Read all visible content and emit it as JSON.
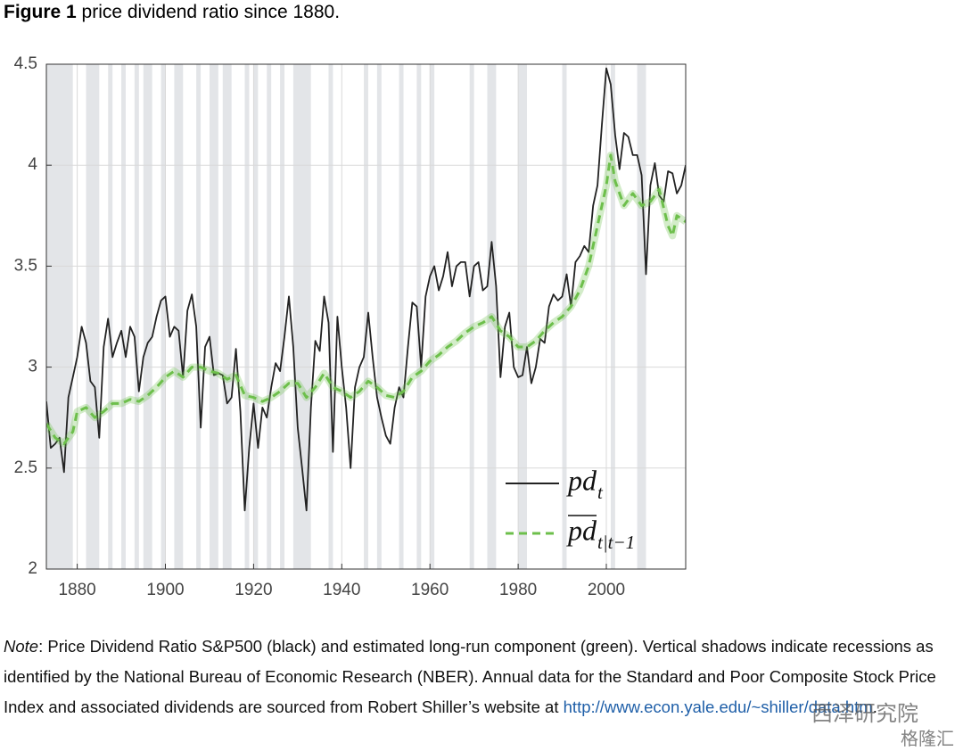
{
  "figure": {
    "label": "Figure 1",
    "caption": "price dividend ratio since 1880."
  },
  "chart_data": {
    "type": "line",
    "xlim": [
      1873,
      2018
    ],
    "xticks": [
      1880,
      1900,
      1920,
      1940,
      1960,
      1980,
      2000
    ],
    "ylim": [
      2,
      4.5
    ],
    "yticks": [
      2,
      2.5,
      3,
      3.5,
      4,
      4.5
    ],
    "grid": true,
    "legend": "lower right",
    "recessions": [
      [
        1873,
        1879
      ],
      [
        1882,
        1885
      ],
      [
        1887,
        1888
      ],
      [
        1890,
        1891
      ],
      [
        1893,
        1894
      ],
      [
        1895,
        1897
      ],
      [
        1899,
        1900
      ],
      [
        1902,
        1904
      ],
      [
        1907,
        1908
      ],
      [
        1910,
        1912
      ],
      [
        1913,
        1915
      ],
      [
        1918,
        1919
      ],
      [
        1920,
        1921
      ],
      [
        1923,
        1924
      ],
      [
        1926,
        1927
      ],
      [
        1929,
        1933
      ],
      [
        1937,
        1938
      ],
      [
        1945,
        1946
      ],
      [
        1948,
        1949
      ],
      [
        1953,
        1954
      ],
      [
        1957,
        1958
      ],
      [
        1960,
        1961
      ],
      [
        1969,
        1970
      ],
      [
        1973,
        1975
      ],
      [
        1980,
        1981
      ],
      [
        1981,
        1982
      ],
      [
        1990,
        1991
      ],
      [
        2001,
        2002
      ],
      [
        2007,
        2009
      ]
    ],
    "recession_color": "#e3e5e8",
    "series": [
      {
        "name": "pd",
        "name_subscript": "t",
        "color": "#222222",
        "dash": false,
        "x": [
          1873,
          1874,
          1875,
          1876,
          1877,
          1878,
          1879,
          1880,
          1881,
          1882,
          1883,
          1884,
          1885,
          1886,
          1887,
          1888,
          1889,
          1890,
          1891,
          1892,
          1893,
          1894,
          1895,
          1896,
          1897,
          1898,
          1899,
          1900,
          1901,
          1902,
          1903,
          1904,
          1905,
          1906,
          1907,
          1908,
          1909,
          1910,
          1911,
          1912,
          1913,
          1914,
          1915,
          1916,
          1917,
          1918,
          1919,
          1920,
          1921,
          1922,
          1923,
          1924,
          1925,
          1926,
          1927,
          1928,
          1929,
          1930,
          1931,
          1932,
          1933,
          1934,
          1935,
          1936,
          1937,
          1938,
          1939,
          1940,
          1941,
          1942,
          1943,
          1944,
          1945,
          1946,
          1947,
          1948,
          1949,
          1950,
          1951,
          1952,
          1953,
          1954,
          1955,
          1956,
          1957,
          1958,
          1959,
          1960,
          1961,
          1962,
          1963,
          1964,
          1965,
          1966,
          1967,
          1968,
          1969,
          1970,
          1971,
          1972,
          1973,
          1974,
          1975,
          1976,
          1977,
          1978,
          1979,
          1980,
          1981,
          1982,
          1983,
          1984,
          1985,
          1986,
          1987,
          1988,
          1989,
          1990,
          1991,
          1992,
          1993,
          1994,
          1995,
          1996,
          1997,
          1998,
          1999,
          2000,
          2001,
          2002,
          2003,
          2004,
          2005,
          2006,
          2007,
          2008,
          2009,
          2010,
          2011,
          2012,
          2013,
          2014,
          2015,
          2016,
          2017,
          2018
        ],
        "values": [
          2.83,
          2.6,
          2.62,
          2.65,
          2.48,
          2.85,
          2.95,
          3.05,
          3.2,
          3.12,
          2.93,
          2.9,
          2.65,
          3.1,
          3.24,
          3.05,
          3.12,
          3.18,
          3.05,
          3.2,
          3.15,
          2.88,
          3.05,
          3.12,
          3.15,
          3.25,
          3.33,
          3.35,
          3.15,
          3.2,
          3.18,
          2.95,
          3.28,
          3.36,
          3.2,
          2.7,
          3.1,
          3.15,
          2.96,
          2.97,
          2.96,
          2.82,
          2.85,
          3.09,
          2.78,
          2.29,
          2.6,
          2.82,
          2.6,
          2.8,
          2.75,
          2.9,
          3.02,
          2.98,
          3.15,
          3.35,
          3.1,
          2.7,
          2.5,
          2.29,
          2.8,
          3.13,
          3.08,
          3.35,
          3.22,
          2.58,
          3.25,
          3.0,
          2.8,
          2.5,
          2.9,
          3.0,
          3.05,
          3.27,
          3.05,
          2.85,
          2.75,
          2.66,
          2.62,
          2.8,
          2.9,
          2.85,
          3.1,
          3.32,
          3.3,
          3.0,
          3.35,
          3.45,
          3.5,
          3.38,
          3.45,
          3.57,
          3.4,
          3.5,
          3.52,
          3.52,
          3.35,
          3.5,
          3.52,
          3.38,
          3.4,
          3.62,
          3.4,
          2.95,
          3.2,
          3.27,
          3.0,
          2.95,
          2.96,
          3.1,
          2.92,
          3.0,
          3.14,
          3.12,
          3.3,
          3.36,
          3.33,
          3.35,
          3.46,
          3.3,
          3.52,
          3.55,
          3.6,
          3.57,
          3.8,
          3.9,
          4.2,
          4.48,
          4.4,
          4.15,
          3.98,
          4.16,
          4.14,
          4.05,
          4.05,
          3.95,
          3.46,
          3.9,
          4.01,
          3.85,
          3.82,
          3.97,
          3.96,
          3.86,
          3.9,
          4.0
        ]
      },
      {
        "name": "pd",
        "name_subscript": "t|t−1",
        "name_overline": true,
        "color": "#6dbf4b",
        "dash": true,
        "x": [
          1873,
          1875,
          1877,
          1879,
          1880,
          1882,
          1884,
          1886,
          1888,
          1890,
          1892,
          1894,
          1896,
          1898,
          1900,
          1902,
          1904,
          1906,
          1908,
          1910,
          1912,
          1914,
          1916,
          1918,
          1920,
          1922,
          1924,
          1926,
          1928,
          1930,
          1932,
          1934,
          1936,
          1938,
          1940,
          1942,
          1944,
          1946,
          1948,
          1950,
          1952,
          1954,
          1956,
          1958,
          1960,
          1962,
          1964,
          1966,
          1968,
          1970,
          1972,
          1974,
          1976,
          1978,
          1980,
          1982,
          1984,
          1986,
          1988,
          1990,
          1992,
          1994,
          1996,
          1998,
          2000,
          2001,
          2002,
          2004,
          2006,
          2008,
          2010,
          2012,
          2014,
          2015,
          2016,
          2018
        ],
        "values": [
          2.72,
          2.65,
          2.62,
          2.68,
          2.78,
          2.8,
          2.75,
          2.78,
          2.82,
          2.82,
          2.84,
          2.83,
          2.86,
          2.9,
          2.95,
          2.98,
          2.95,
          3.0,
          3.0,
          2.98,
          2.97,
          2.94,
          2.96,
          2.86,
          2.85,
          2.83,
          2.85,
          2.88,
          2.92,
          2.92,
          2.85,
          2.9,
          2.97,
          2.9,
          2.88,
          2.85,
          2.88,
          2.93,
          2.9,
          2.86,
          2.85,
          2.88,
          2.95,
          2.98,
          3.03,
          3.06,
          3.1,
          3.13,
          3.17,
          3.2,
          3.22,
          3.25,
          3.18,
          3.15,
          3.1,
          3.1,
          3.13,
          3.18,
          3.22,
          3.25,
          3.3,
          3.38,
          3.5,
          3.7,
          3.9,
          4.05,
          3.92,
          3.8,
          3.86,
          3.8,
          3.82,
          3.88,
          3.7,
          3.65,
          3.75,
          3.72
        ]
      }
    ]
  },
  "note": {
    "label": "Note",
    "text": ": Price Dividend Ratio S&P500 (black) and estimated long-run component (green).  Vertical shadows indicate recessions as identified by the National Bureau of Economic Research (NBER). Annual data for the Standard and Poor Composite Stock Price Index and associated dividends are sourced from Robert Shiller’s website at ",
    "link": "http://www.econ.yale.edu/~shiller/data.htm",
    "end": "."
  },
  "watermark": [
    "西泽研究院",
    "格隆汇"
  ]
}
